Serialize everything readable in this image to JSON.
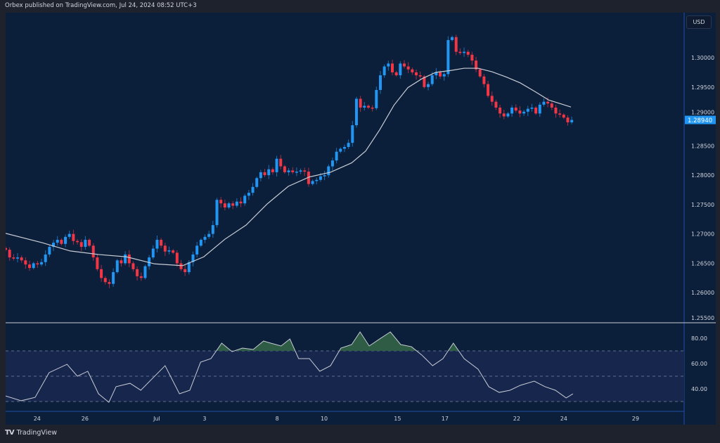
{
  "header": {
    "published": "Orbex published on TradingView.com, Jul 24, 2024 08:52 UTC+3"
  },
  "currency_button": "USD",
  "footer": {
    "brand": "TradingView",
    "logo": "TV"
  },
  "colors": {
    "up": "#2196f3",
    "down": "#f23645",
    "ma": "#c8ccd4",
    "background": "#0b1e3a",
    "band": "#16264d",
    "overbought_fill": "#2e5c45"
  },
  "chart_data": [
    {
      "type": "candlestick",
      "title": "",
      "y_axis": {
        "min": 1.255,
        "max": 1.3,
        "ticks": [
          "1.30000",
          "1.29500",
          "1.29000",
          "1.28500",
          "1.28000",
          "1.27500",
          "1.27000",
          "1.26500",
          "1.26000",
          "1.25500"
        ]
      },
      "last_price": 1.2894,
      "last_price_label": "1.28940",
      "x_axis": {
        "labels": [
          {
            "text": "24",
            "candle": 7.9
          },
          {
            "text": "26",
            "candle": 19.9
          },
          {
            "text": "Jul",
            "candle": 37.9
          },
          {
            "text": "3",
            "candle": 49.9
          },
          {
            "text": "8",
            "candle": 68.1
          },
          {
            "text": "10",
            "candle": 79.9
          },
          {
            "text": "15",
            "candle": 98.3
          },
          {
            "text": "17",
            "candle": 110.2
          },
          {
            "text": "22",
            "candle": 128.2
          },
          {
            "text": "24",
            "candle": 140
          },
          {
            "text": "29",
            "candle": 158
          }
        ]
      },
      "closes": [
        1.2673,
        1.266,
        1.2658,
        1.266,
        1.2655,
        1.2648,
        1.2642,
        1.265,
        1.2648,
        1.2652,
        1.2665,
        1.2678,
        1.2685,
        1.269,
        1.2683,
        1.2695,
        1.27,
        1.2688,
        1.2686,
        1.2678,
        1.269,
        1.268,
        1.266,
        1.264,
        1.2625,
        1.2618,
        1.2615,
        1.2635,
        1.2655,
        1.265,
        1.2665,
        1.265,
        1.264,
        1.2628,
        1.2625,
        1.2645,
        1.266,
        1.2675,
        1.269,
        1.268,
        1.267,
        1.2672,
        1.2668,
        1.265,
        1.264,
        1.2635,
        1.2652,
        1.2665,
        1.268,
        1.269,
        1.2695,
        1.27,
        1.2715,
        1.2758,
        1.2752,
        1.2745,
        1.2752,
        1.2748,
        1.2755,
        1.2752,
        1.2765,
        1.277,
        1.278,
        1.2795,
        1.2805,
        1.28,
        1.281,
        1.2805,
        1.2828,
        1.2815,
        1.2805,
        1.2808,
        1.2805,
        1.2806,
        1.2808,
        1.2806,
        1.2785,
        1.279,
        1.2792,
        1.2798,
        1.28,
        1.2815,
        1.2825,
        1.284,
        1.2845,
        1.2848,
        1.2855,
        1.2885,
        1.293,
        1.2915,
        1.2918,
        1.2915,
        1.2914,
        1.2945,
        1.297,
        1.2985,
        1.299,
        1.2975,
        1.297,
        1.299,
        1.2985,
        1.298,
        1.2975,
        1.297,
        1.2968,
        1.295,
        1.2955,
        1.297,
        1.2975,
        1.2968,
        1.2972,
        1.303,
        1.3035,
        1.301,
        1.3008,
        1.301,
        1.3005,
        1.2995,
        1.298,
        1.2968,
        1.2955,
        1.2935,
        1.2925,
        1.2915,
        1.2905,
        1.29,
        1.2905,
        1.2915,
        1.291,
        1.2905,
        1.2908,
        1.2913,
        1.2915,
        1.2905,
        1.292,
        1.2925,
        1.2922,
        1.2915,
        1.2905,
        1.2903,
        1.2898,
        1.289,
        1.2894
      ],
      "moving_average": [
        [
          0,
          1.2701
        ],
        [
          9.2,
          1.2685
        ],
        [
          16.2,
          1.2671
        ],
        [
          23.3,
          1.2665
        ],
        [
          30.3,
          1.2661
        ],
        [
          37.4,
          1.2649
        ],
        [
          44.4,
          1.2646
        ],
        [
          49.7,
          1.2661
        ],
        [
          55,
          1.2691
        ],
        [
          60.3,
          1.2715
        ],
        [
          65.6,
          1.2751
        ],
        [
          70.9,
          1.2781
        ],
        [
          76.2,
          1.2797
        ],
        [
          81.5,
          1.2805
        ],
        [
          86.8,
          1.2821
        ],
        [
          90.3,
          1.2841
        ],
        [
          93.8,
          1.2877
        ],
        [
          97.4,
          1.2919
        ],
        [
          100.9,
          1.2949
        ],
        [
          104.4,
          1.2964
        ],
        [
          107.9,
          1.2975
        ],
        [
          111.5,
          1.2978
        ],
        [
          115,
          1.2982
        ],
        [
          118.5,
          1.2982
        ],
        [
          122,
          1.2976
        ],
        [
          125.6,
          1.2967
        ],
        [
          129.1,
          1.2957
        ],
        [
          132.6,
          1.2943
        ],
        [
          136.2,
          1.2928
        ],
        [
          141.8,
          1.2916
        ]
      ]
    },
    {
      "type": "line",
      "title": "",
      "y_axis": {
        "ticks": [
          "80.00",
          "60.00",
          "40.00"
        ],
        "levels": [
          70,
          50,
          30
        ]
      },
      "values": [
        [
          0,
          34.4
        ],
        [
          3.9,
          30.6
        ],
        [
          7.4,
          33.3
        ],
        [
          10.9,
          52.8
        ],
        [
          15.4,
          59.4
        ],
        [
          18,
          50
        ],
        [
          20.6,
          53.9
        ],
        [
          23.3,
          36.1
        ],
        [
          25.9,
          29.4
        ],
        [
          27.7,
          41.7
        ],
        [
          31.2,
          44.4
        ],
        [
          33.9,
          38.9
        ],
        [
          36.5,
          47.2
        ],
        [
          40,
          58.3
        ],
        [
          43.6,
          36.1
        ],
        [
          46.2,
          38.9
        ],
        [
          48.9,
          61.1
        ],
        [
          51.5,
          63.9
        ],
        [
          54.2,
          76.1
        ],
        [
          56.8,
          69.4
        ],
        [
          59.4,
          72.2
        ],
        [
          62.1,
          71.1
        ],
        [
          64.7,
          77.8
        ],
        [
          66.5,
          76.1
        ],
        [
          69.1,
          73.9
        ],
        [
          71.3,
          79.4
        ],
        [
          73.5,
          63.9
        ],
        [
          76.2,
          63.9
        ],
        [
          78.8,
          53.9
        ],
        [
          81.5,
          58.3
        ],
        [
          84.1,
          72.2
        ],
        [
          86.8,
          75
        ],
        [
          88.9,
          85
        ],
        [
          91.2,
          73.9
        ],
        [
          93.8,
          79.4
        ],
        [
          96.5,
          85
        ],
        [
          99.1,
          75
        ],
        [
          101.8,
          73.3
        ],
        [
          104.4,
          66.7
        ],
        [
          107.1,
          58.3
        ],
        [
          109.7,
          63.9
        ],
        [
          112.3,
          76.1
        ],
        [
          115,
          63.9
        ],
        [
          118.5,
          55.6
        ],
        [
          121.2,
          41.7
        ],
        [
          123.8,
          37.2
        ],
        [
          126.5,
          38.9
        ],
        [
          129.1,
          42.8
        ],
        [
          132.6,
          46.1
        ],
        [
          135.3,
          41.7
        ],
        [
          137.9,
          38.9
        ],
        [
          140.6,
          32.8
        ],
        [
          142.3,
          36.1
        ]
      ]
    }
  ]
}
